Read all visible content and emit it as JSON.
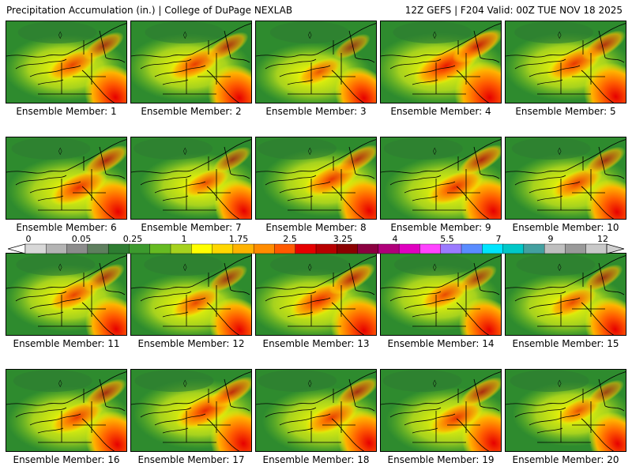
{
  "header": {
    "title": "Precipitation Accumulation (in.) | College of DuPage NEXLAB",
    "run_info": "12Z GEFS | F204 Valid: 00Z TUE NOV 18 2025"
  },
  "members": [
    {
      "label": "Ensemble Member: 1",
      "intensity": 0.45
    },
    {
      "label": "Ensemble Member: 2",
      "intensity": 0.5
    },
    {
      "label": "Ensemble Member: 3",
      "intensity": 0.3
    },
    {
      "label": "Ensemble Member: 4",
      "intensity": 0.8
    },
    {
      "label": "Ensemble Member: 5",
      "intensity": 0.55
    },
    {
      "label": "Ensemble Member: 6",
      "intensity": 0.6
    },
    {
      "label": "Ensemble Member: 7",
      "intensity": 0.35
    },
    {
      "label": "Ensemble Member: 8",
      "intensity": 0.55
    },
    {
      "label": "Ensemble Member: 9",
      "intensity": 0.6
    },
    {
      "label": "Ensemble Member: 10",
      "intensity": 0.45
    },
    {
      "label": "Ensemble Member: 11",
      "intensity": 0.45
    },
    {
      "label": "Ensemble Member: 12",
      "intensity": 0.4
    },
    {
      "label": "Ensemble Member: 13",
      "intensity": 0.65
    },
    {
      "label": "Ensemble Member: 14",
      "intensity": 0.4
    },
    {
      "label": "Ensemble Member: 15",
      "intensity": 0.4
    },
    {
      "label": "Ensemble Member: 16",
      "intensity": 0.5
    },
    {
      "label": "Ensemble Member: 17",
      "intensity": 0.65
    },
    {
      "label": "Ensemble Member: 18",
      "intensity": 0.5
    },
    {
      "label": "Ensemble Member: 19",
      "intensity": 0.55
    },
    {
      "label": "Ensemble Member: 20",
      "intensity": 0.3
    }
  ],
  "colorbar": {
    "ticks": [
      "0",
      "0.05",
      "0.25",
      "1",
      "1.75",
      "2.5",
      "3.25",
      "4",
      "5.5",
      "7",
      "9",
      "12"
    ],
    "colors": [
      "#d8d8d8",
      "#b4b4b4",
      "#8c8c8c",
      "#5f7f5f",
      "#2e7d32",
      "#3c9a2e",
      "#66bb22",
      "#a6d21e",
      "#ffff00",
      "#ffd700",
      "#ffb300",
      "#ff8c00",
      "#ff5a00",
      "#e60000",
      "#b80000",
      "#8b0000",
      "#8b0040",
      "#b0007a",
      "#e000c0",
      "#ff44ff",
      "#9b7bff",
      "#5a8cff",
      "#00e5ff",
      "#00c8c8",
      "#44a0a0",
      "#bfbfbf",
      "#9a9a9a",
      "#c9c9c9"
    ]
  }
}
